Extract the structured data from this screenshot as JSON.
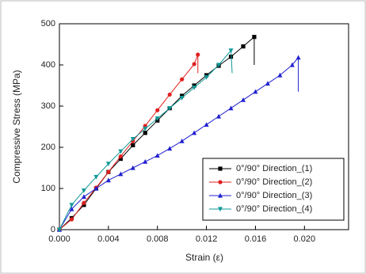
{
  "chart_data": {
    "type": "line",
    "x_label": "Strain (ε)",
    "y_label": "Compressive Stress (MPa)",
    "xlim": [
      0,
      0.0236
    ],
    "ylim": [
      0,
      500
    ],
    "xticks": [
      {
        "value": 0,
        "label": "0.000"
      },
      {
        "value": 0.004,
        "label": "0.004"
      },
      {
        "value": 0.008,
        "label": "0.008"
      },
      {
        "value": 0.012,
        "label": "0.012"
      },
      {
        "value": 0.016,
        "label": "0.016"
      },
      {
        "value": 0.02,
        "label": "0.020"
      }
    ],
    "yticks": [
      0,
      100,
      200,
      300,
      400,
      500
    ],
    "legend": "lower-right",
    "series": [
      {
        "name": "0°/90° Direction_(1)",
        "color": "#000000",
        "marker": "square",
        "x": [
          0,
          0.001,
          0.002,
          0.003,
          0.004,
          0.005,
          0.006,
          0.007,
          0.008,
          0.009,
          0.01,
          0.011,
          0.012,
          0.013,
          0.014,
          0.015,
          0.0159,
          0.0159
        ],
        "values": [
          0,
          28,
          60,
          100,
          140,
          172,
          205,
          235,
          265,
          295,
          325,
          350,
          375,
          398,
          420,
          445,
          468,
          400
        ]
      },
      {
        "name": "0°/90° Direction_(2)",
        "color": "#e02020",
        "marker": "circle",
        "x": [
          0,
          0.001,
          0.002,
          0.003,
          0.004,
          0.005,
          0.006,
          0.007,
          0.008,
          0.009,
          0.01,
          0.011,
          0.0113,
          0.0113
        ],
        "values": [
          0,
          25,
          65,
          102,
          140,
          178,
          215,
          252,
          290,
          328,
          365,
          402,
          425,
          380
        ]
      },
      {
        "name": "0°/90° Direction_(3)",
        "color": "#2020d0",
        "marker": "triangle-up",
        "x": [
          0,
          0.001,
          0.002,
          0.003,
          0.004,
          0.005,
          0.006,
          0.007,
          0.008,
          0.009,
          0.01,
          0.011,
          0.012,
          0.013,
          0.014,
          0.015,
          0.016,
          0.017,
          0.018,
          0.019,
          0.0195,
          0.0195
        ],
        "values": [
          0,
          50,
          80,
          100,
          120,
          135,
          150,
          165,
          180,
          197,
          215,
          235,
          255,
          275,
          295,
          315,
          335,
          355,
          375,
          400,
          418,
          335
        ]
      },
      {
        "name": "0°/90° Direction_(4)",
        "color": "#109898",
        "marker": "triangle-down",
        "x": [
          0,
          0.001,
          0.002,
          0.003,
          0.004,
          0.005,
          0.006,
          0.007,
          0.008,
          0.009,
          0.01,
          0.011,
          0.012,
          0.013,
          0.014,
          0.0141
        ],
        "values": [
          0,
          60,
          95,
          128,
          160,
          190,
          220,
          245,
          270,
          295,
          320,
          345,
          370,
          400,
          435,
          380
        ]
      }
    ]
  }
}
